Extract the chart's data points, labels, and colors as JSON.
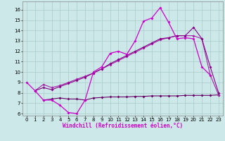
{
  "background_color": "#cce8e8",
  "grid_color": "#aacccc",
  "line1_color": "#cc00cc",
  "line2_color": "#880088",
  "line3_color": "#aa22aa",
  "line4_color": "#660066",
  "xlabel": "Windchill (Refroidissement éolien,°C)",
  "ylim": [
    5.8,
    16.8
  ],
  "xlim": [
    -0.5,
    23.5
  ],
  "yticks": [
    6,
    7,
    8,
    9,
    10,
    11,
    12,
    13,
    14,
    15,
    16
  ],
  "xticks": [
    0,
    1,
    2,
    3,
    4,
    5,
    6,
    7,
    8,
    9,
    10,
    11,
    12,
    13,
    14,
    15,
    16,
    17,
    18,
    19,
    20,
    21,
    22,
    23
  ],
  "line1_x": [
    0,
    1,
    2,
    3,
    4,
    5,
    6,
    7,
    8,
    9,
    10,
    11,
    12,
    13,
    14,
    15,
    16,
    17,
    18,
    19,
    20,
    21,
    22
  ],
  "line1_y": [
    9.0,
    8.2,
    7.3,
    7.3,
    6.8,
    6.1,
    6.0,
    7.3,
    10.0,
    10.5,
    11.8,
    12.0,
    11.7,
    13.0,
    14.9,
    15.2,
    16.2,
    14.8,
    13.2,
    13.3,
    13.2,
    10.5,
    9.7
  ],
  "line2_x": [
    1,
    2,
    3,
    4,
    5,
    6,
    7,
    8,
    9,
    10,
    11,
    12,
    13,
    14,
    15,
    16,
    17,
    18,
    19,
    20,
    21,
    22,
    23
  ],
  "line2_y": [
    8.2,
    8.5,
    8.3,
    8.6,
    8.9,
    9.2,
    9.5,
    9.9,
    10.3,
    10.8,
    11.2,
    11.6,
    12.0,
    12.4,
    12.8,
    13.2,
    13.3,
    13.5,
    13.5,
    14.3,
    13.2,
    10.5,
    8.0
  ],
  "line3_x": [
    1,
    2,
    3,
    4,
    5,
    6,
    7,
    8,
    9,
    10,
    11,
    12,
    13,
    14,
    15,
    16,
    17,
    18,
    19,
    20,
    21,
    22,
    23
  ],
  "line3_y": [
    8.2,
    8.8,
    8.5,
    8.7,
    9.0,
    9.3,
    9.6,
    9.9,
    10.3,
    10.7,
    11.1,
    11.5,
    11.9,
    12.3,
    12.7,
    13.1,
    13.3,
    13.5,
    13.5,
    13.5,
    13.2,
    9.7,
    7.8
  ],
  "line4_x": [
    2,
    3,
    4,
    5,
    6,
    7,
    8,
    9,
    10,
    11,
    12,
    13,
    14,
    15,
    16,
    17,
    18,
    19,
    20,
    21,
    22,
    23
  ],
  "line4_y": [
    7.3,
    7.4,
    7.5,
    7.4,
    7.4,
    7.3,
    7.5,
    7.55,
    7.6,
    7.6,
    7.6,
    7.65,
    7.65,
    7.7,
    7.7,
    7.7,
    7.7,
    7.75,
    7.75,
    7.75,
    7.75,
    7.8
  ]
}
